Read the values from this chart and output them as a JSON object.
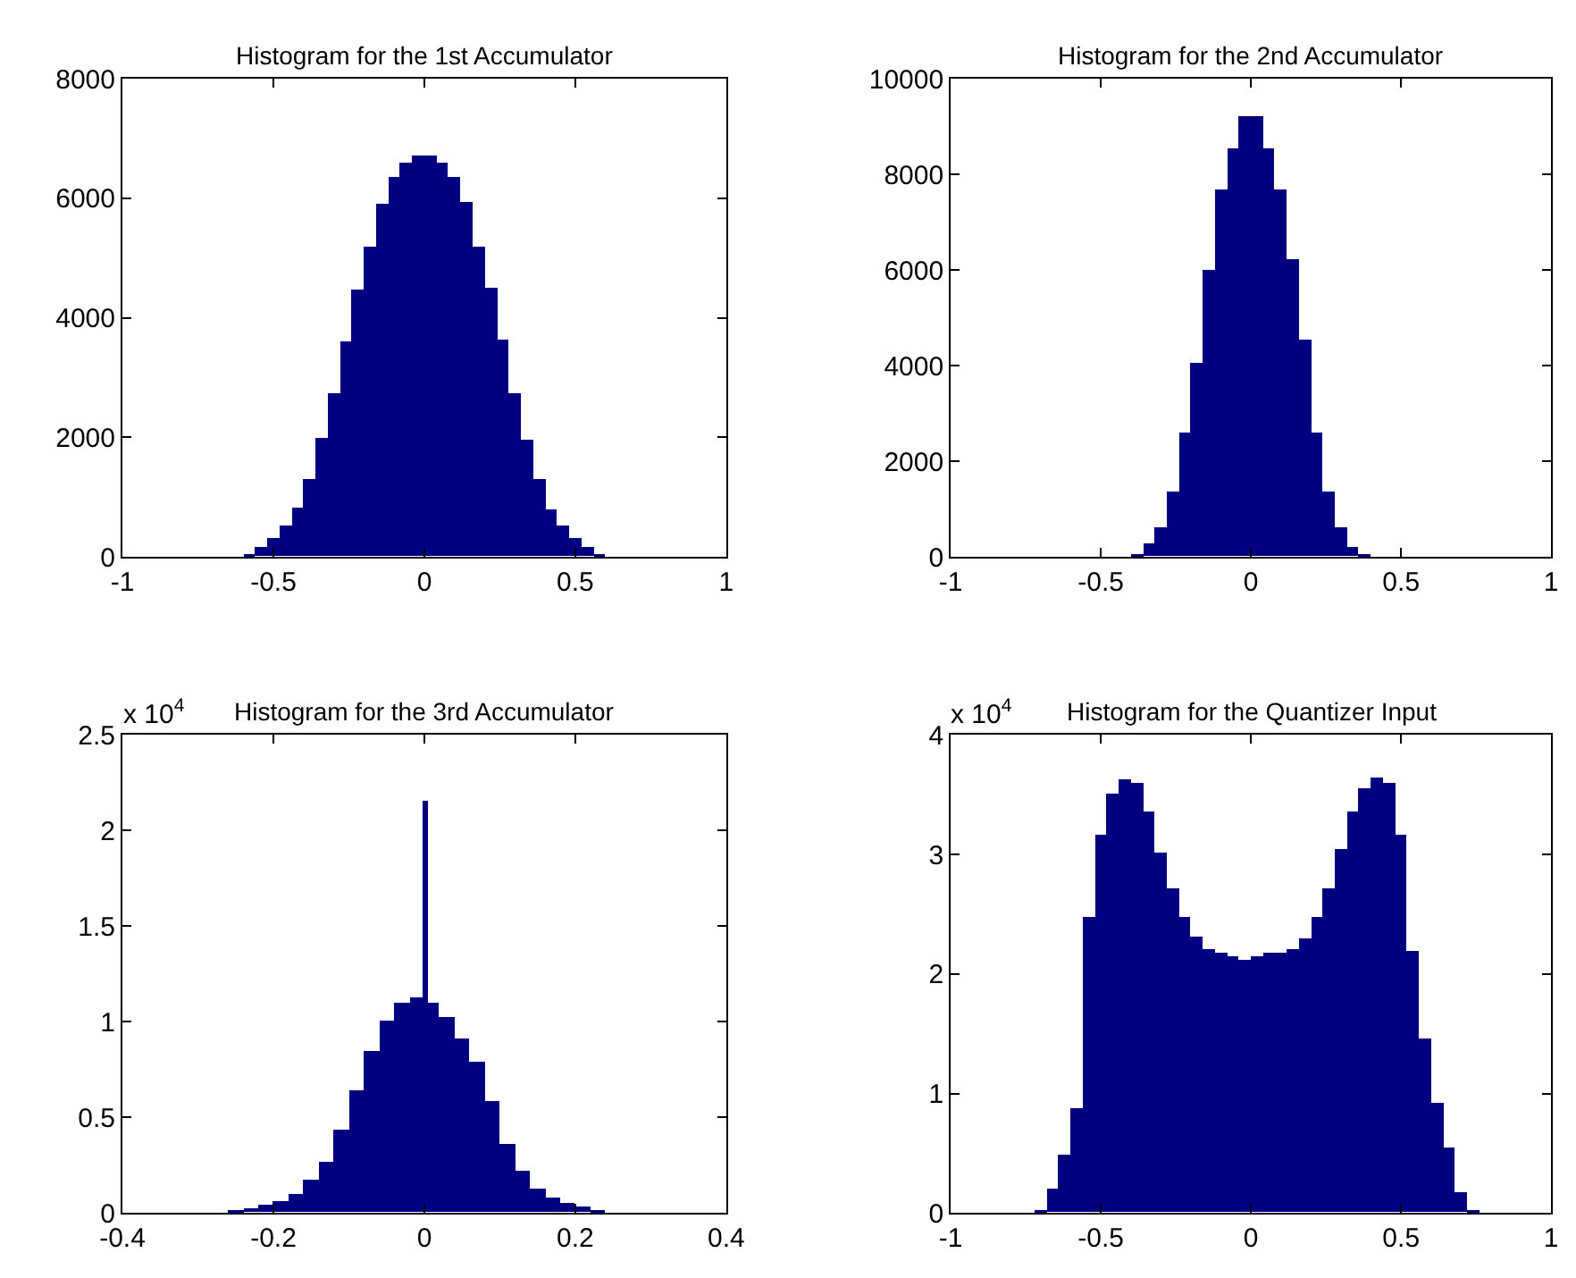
{
  "chart_data": [
    {
      "type": "histogram",
      "title": "Histogram for the 1st Accumulator",
      "color": "#000080",
      "bins": [
        -0.6,
        -0.56,
        -0.52,
        -0.48,
        -0.44,
        -0.4,
        -0.36,
        -0.32,
        -0.28,
        -0.24,
        -0.2,
        -0.16,
        -0.12,
        -0.08,
        -0.04,
        0,
        0.04,
        0.08,
        0.12,
        0.16,
        0.2,
        0.24,
        0.28,
        0.32,
        0.36,
        0.4,
        0.44,
        0.48,
        0.52,
        0.56,
        0.6
      ],
      "values": [
        50,
        170,
        320,
        520,
        820,
        1300,
        1980,
        2750,
        3600,
        4480,
        5200,
        5900,
        6350,
        6600,
        6700,
        6700,
        6600,
        6350,
        5950,
        5200,
        4500,
        3630,
        2750,
        1970,
        1290,
        800,
        510,
        310,
        170,
        40
      ],
      "xlim": [
        -1,
        1
      ],
      "xticks": [
        -1,
        -0.5,
        0,
        0.5,
        1
      ],
      "ylim": [
        0,
        8000
      ],
      "yticks": [
        0,
        2000,
        4000,
        6000,
        8000
      ]
    },
    {
      "type": "histogram",
      "title": "Histogram for the 2nd Accumulator",
      "color": "#000080",
      "bins": [
        -0.4,
        -0.36,
        -0.32,
        -0.28,
        -0.24,
        -0.2,
        -0.16,
        -0.12,
        -0.08,
        -0.04,
        0,
        0.04,
        0.08,
        0.12,
        0.16,
        0.2,
        0.24,
        0.28,
        0.32,
        0.36,
        0.4
      ],
      "values": [
        50,
        270,
        630,
        1360,
        2580,
        4040,
        5990,
        7690,
        8540,
        9200,
        9200,
        8540,
        7690,
        6230,
        4530,
        2580,
        1360,
        630,
        210,
        30
      ],
      "xlim": [
        -1,
        1
      ],
      "xticks": [
        -1,
        -0.5,
        0,
        0.5,
        1
      ],
      "ylim": [
        0,
        10000
      ],
      "yticks": [
        0,
        2000,
        4000,
        6000,
        8000,
        10000
      ]
    },
    {
      "type": "histogram",
      "title": "Histogram for the 3rd Accumulator",
      "color": "#000080",
      "annotations": [
        "x 10$^{4}$"
      ],
      "bins": [
        -0.26,
        -0.24,
        -0.22,
        -0.2,
        -0.18,
        -0.16,
        -0.14,
        -0.12,
        -0.1,
        -0.08,
        -0.06,
        -0.04,
        -0.02,
        0,
        0.004,
        0.02,
        0.04,
        0.06,
        0.08,
        0.1,
        0.12,
        0.14,
        0.16,
        0.18,
        0.2,
        0.22,
        0.24
      ],
      "values": [
        0.01,
        0.02,
        0.04,
        0.06,
        0.1,
        0.17,
        0.27,
        0.43,
        0.64,
        0.85,
        1.0,
        1.1,
        1.13,
        2.15,
        1.1,
        1.02,
        0.91,
        0.79,
        0.58,
        0.36,
        0.22,
        0.13,
        0.08,
        0.05,
        0.03,
        0.01
      ],
      "xlim": [
        -0.4,
        0.4
      ],
      "xticks": [
        -0.4,
        -0.2,
        0,
        0.2,
        0.4
      ],
      "ylim": [
        0,
        2.5
      ],
      "yticks": [
        0,
        0.5,
        1,
        1.5,
        2,
        2.5
      ]
    },
    {
      "type": "histogram",
      "title": "Histogram for the Quantizer Input",
      "color": "#000080",
      "annotations": [
        "x 10$^{4}$"
      ],
      "bins": [
        -0.72,
        -0.68,
        -0.64,
        -0.6,
        -0.56,
        -0.52,
        -0.48,
        -0.44,
        -0.4,
        -0.36,
        -0.32,
        -0.28,
        -0.24,
        -0.2,
        -0.16,
        -0.12,
        -0.08,
        -0.04,
        0,
        0.04,
        0.08,
        0.12,
        0.16,
        0.2,
        0.24,
        0.28,
        0.32,
        0.36,
        0.4,
        0.44,
        0.48,
        0.52,
        0.56,
        0.6,
        0.64,
        0.68,
        0.72,
        0.76
      ],
      "values": [
        0.02,
        0.2,
        0.49,
        0.88,
        2.48,
        3.16,
        3.5,
        3.63,
        3.6,
        3.36,
        3.02,
        2.72,
        2.48,
        2.31,
        2.21,
        2.18,
        2.14,
        2.12,
        2.14,
        2.17,
        2.18,
        2.21,
        2.29,
        2.48,
        2.72,
        3.04,
        3.36,
        3.55,
        3.64,
        3.6,
        3.16,
        2.19,
        1.46,
        0.92,
        0.54,
        0.17,
        0.02
      ],
      "xlim": [
        -1,
        1
      ],
      "xticks": [
        -1,
        -0.5,
        0,
        0.5,
        1
      ],
      "ylim": [
        0,
        4
      ],
      "yticks": [
        0,
        1,
        2,
        3,
        4
      ]
    }
  ]
}
